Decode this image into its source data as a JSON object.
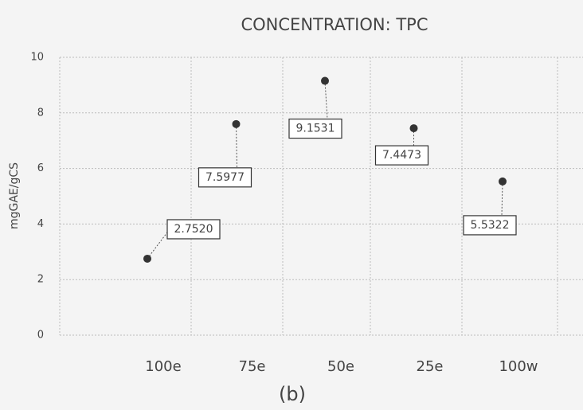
{
  "chart_data": {
    "type": "scatter",
    "title": "CONCENTRATION: TPC",
    "y_label": "mgGAE/gCS",
    "categories": [
      "100e",
      "75e",
      "50e",
      "25e",
      "100w"
    ],
    "values": [
      2.752,
      7.5977,
      9.1531,
      7.4473,
      5.5322
    ],
    "value_labels": [
      "2.7520",
      "7.5977",
      "9.1531",
      "7.4473",
      "5.5322"
    ],
    "color": "#333333",
    "ylim": [
      0,
      10
    ],
    "yticks": [
      0,
      2,
      4,
      6,
      8,
      10
    ],
    "grid": true,
    "caption": "(b)"
  }
}
